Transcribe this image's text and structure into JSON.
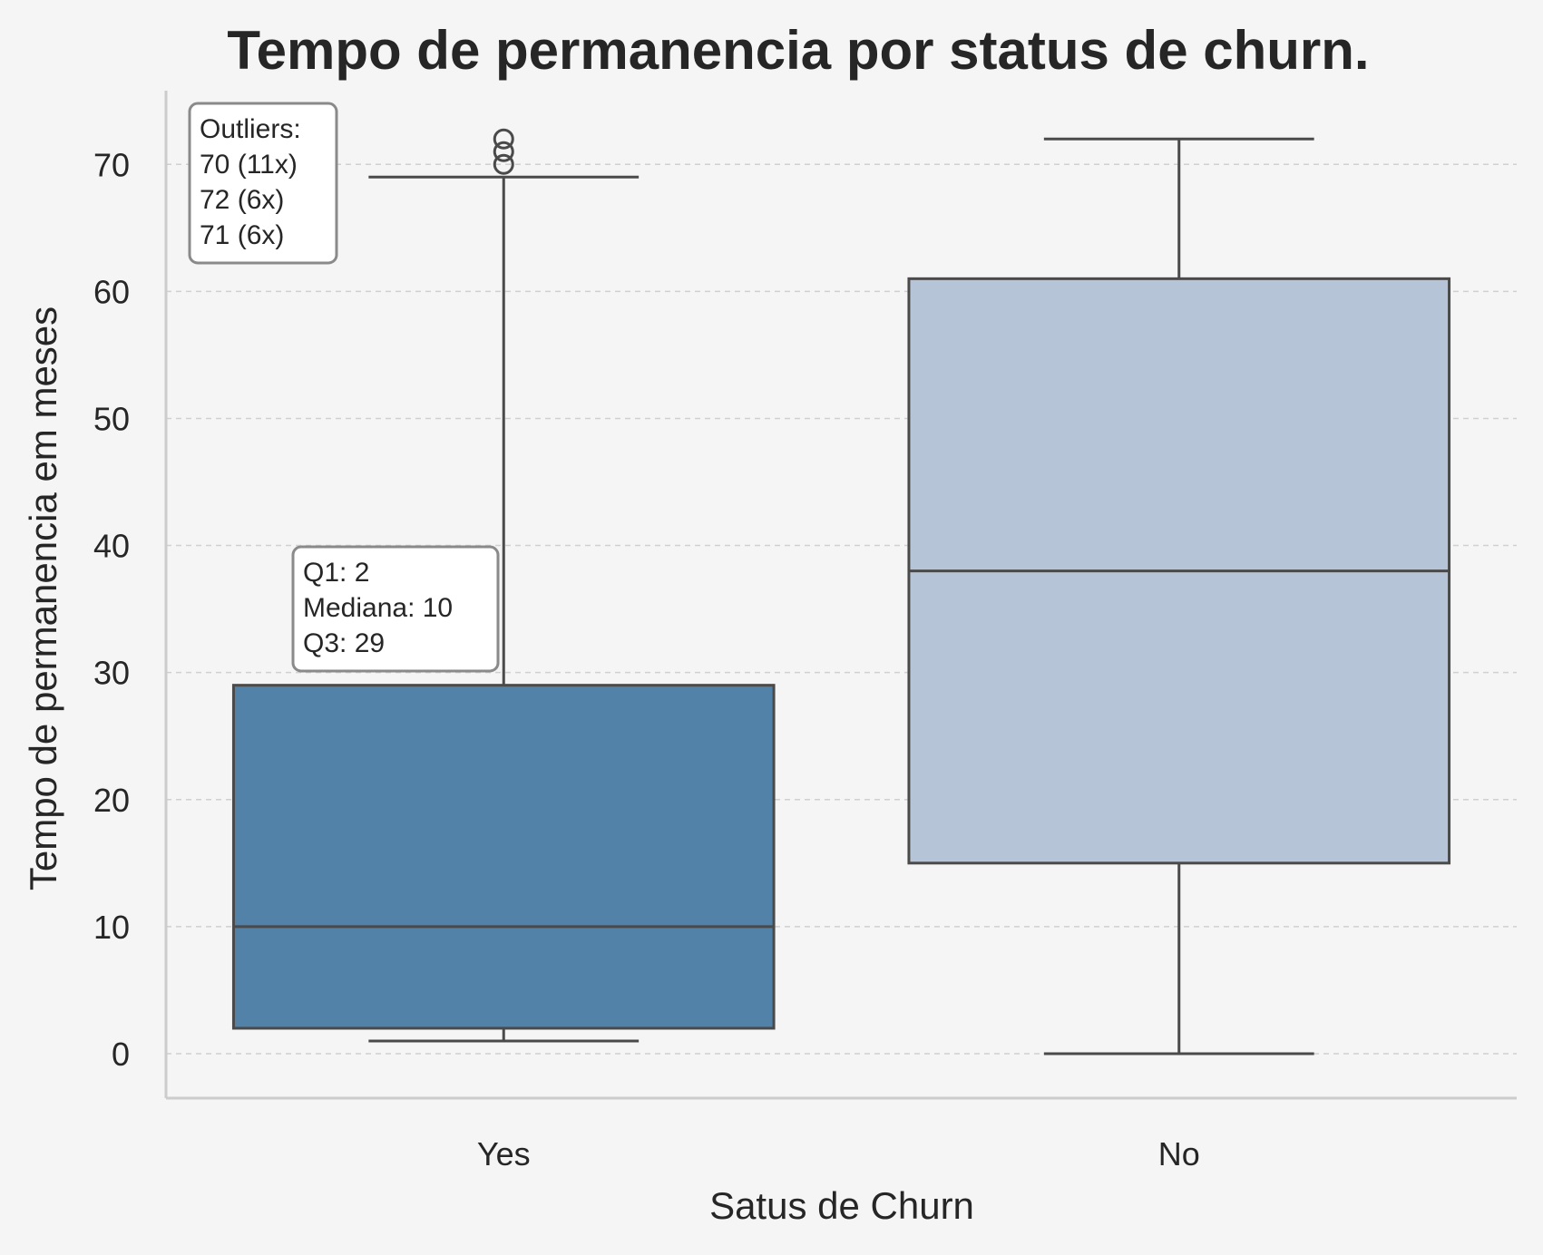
{
  "chart_data": {
    "type": "box",
    "title": "Tempo de permanencia por status de churn.",
    "xlabel": "Satus de Churn",
    "ylabel": "Tempo de permanencia em meses",
    "ylim": [
      -3.5,
      75.8
    ],
    "yticks": [
      0,
      10,
      20,
      30,
      40,
      50,
      60,
      70
    ],
    "grid": "y-dashed",
    "categories": [
      "Yes",
      "No"
    ],
    "boxes": [
      {
        "category": "Yes",
        "whisker_low": 1,
        "q1": 2,
        "median": 10,
        "q3": 29,
        "whisker_high": 69,
        "outliers": [
          70,
          71,
          72
        ],
        "color": "#5282a8"
      },
      {
        "category": "No",
        "whisker_low": 0,
        "q1": 15,
        "median": 38,
        "q3": 61,
        "whisker_high": 72,
        "outliers": [],
        "color": "#b5c4d7"
      }
    ],
    "annotations": {
      "outliers": [
        "Outliers:",
        "70 (11x)",
        "72 (6x)",
        "71 (6x)"
      ],
      "stats": [
        "Q1: 2",
        "Mediana: 10",
        "Q3: 29"
      ]
    },
    "colors": {
      "background": "#f5f5f5",
      "line": "#4a4a4a",
      "grid": "#d0d0d0",
      "spine": "#cccccc"
    }
  }
}
